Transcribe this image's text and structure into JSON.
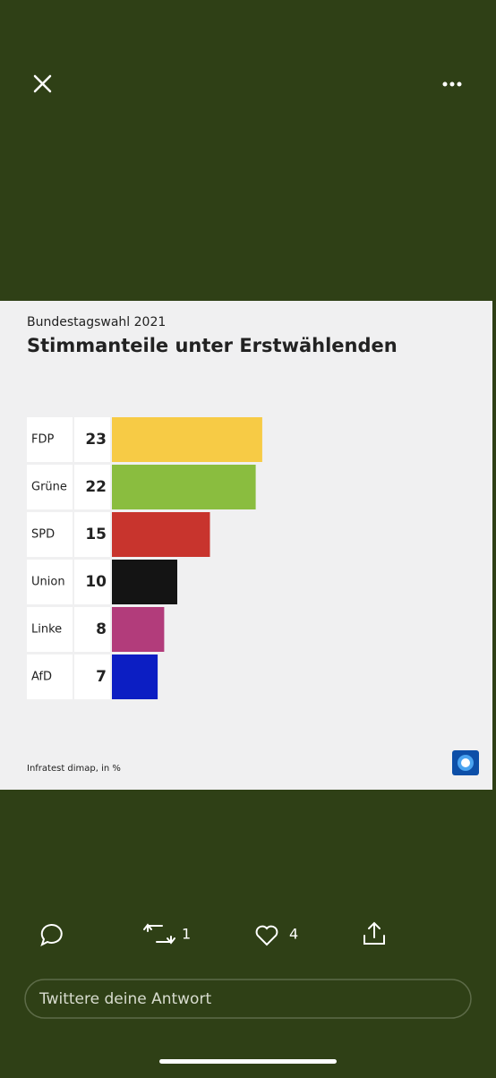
{
  "chart_data": {
    "type": "bar",
    "subtitle": "Bundestagswahl 2021",
    "title": "Stimmanteile unter Erstwählenden",
    "categories": [
      "FDP",
      "Grüne",
      "SPD",
      "Union",
      "Linke",
      "AfD"
    ],
    "values": [
      23,
      22,
      15,
      10,
      8,
      7
    ],
    "colors": [
      "#f7cb45",
      "#8abd3f",
      "#c8342d",
      "#141414",
      "#b23c7b",
      "#0c1ec3"
    ],
    "source": "Infratest dimap, in %"
  },
  "tweet_actions": {
    "retweets": 1,
    "likes": 4
  },
  "reply_box": {
    "placeholder": "Twittere deine Antwort"
  }
}
